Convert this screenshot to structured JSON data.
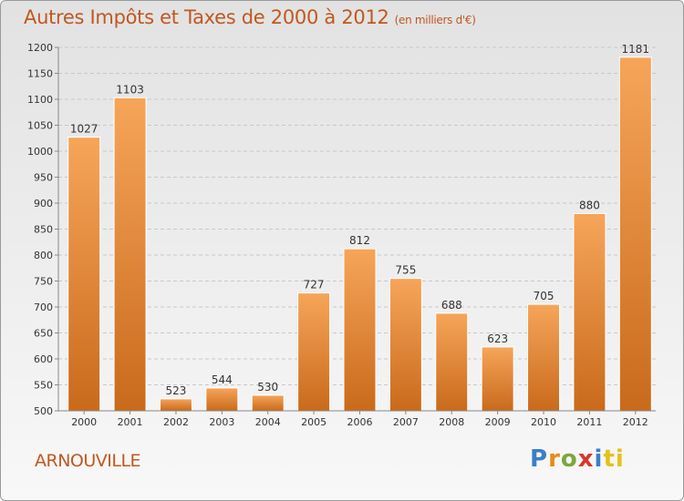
{
  "title": "Autres Impôts et Taxes de 2000 à 2012",
  "subtitle": "(en milliers d'€)",
  "city": "ARNOUVILLE",
  "logo": {
    "text": "Proxiti",
    "letters": [
      "P",
      "r",
      "o",
      "x",
      "i",
      "ti"
    ]
  },
  "colors": {
    "bar_top": "#f6a55a",
    "bar_bottom": "#c96a1b",
    "title": "#c05820"
  },
  "chart_data": {
    "type": "bar",
    "title": "Autres Impôts et Taxes de 2000 à 2012",
    "subtitle": "(en milliers d'€)",
    "categories": [
      "2000",
      "2001",
      "2002",
      "2003",
      "2004",
      "2005",
      "2006",
      "2007",
      "2008",
      "2009",
      "2010",
      "2011",
      "2012"
    ],
    "values": [
      1027,
      1103,
      523,
      544,
      530,
      727,
      812,
      755,
      688,
      623,
      705,
      880,
      1181
    ],
    "ylim": [
      500,
      1200
    ],
    "yticks": [
      500,
      550,
      600,
      650,
      700,
      750,
      800,
      850,
      900,
      950,
      1000,
      1050,
      1100,
      1150,
      1200
    ],
    "grid": true,
    "data_labels": true
  }
}
